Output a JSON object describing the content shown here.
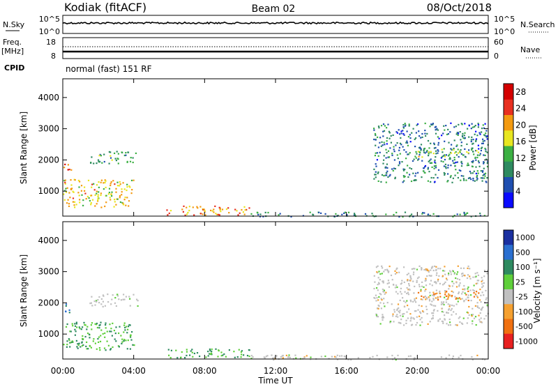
{
  "header": {
    "station": "Kodiak (fitACF)",
    "beam": "Beam 02",
    "date": "08/Oct/2018"
  },
  "top_panels": {
    "nsky": {
      "label": "N.Sky",
      "ticks": [
        "10^5",
        "10^0"
      ]
    },
    "nsearch": {
      "label": "N.Search",
      "ticks": [
        "10^5",
        "10^0"
      ]
    },
    "freq": {
      "label": "Freq.",
      "unit": "[MHz]",
      "ticks": [
        "18",
        "8"
      ]
    },
    "nave": {
      "label": "Nave",
      "ticks": [
        "60",
        "0"
      ]
    },
    "cpid": {
      "label": "CPID",
      "value": "normal (fast) 151 RF"
    }
  },
  "chart_data": [
    {
      "type": "heatmap",
      "name": "power-panel",
      "ylabel": "Slant Range [km]",
      "xlabel": "Time UT",
      "x_ticks": [
        "00:00",
        "04:00",
        "08:00",
        "12:00",
        "16:00",
        "20:00",
        "00:00"
      ],
      "xlim": [
        0,
        24
      ],
      "ylim": [
        200,
        4600
      ],
      "y_ticks": [
        1000,
        2000,
        3000,
        4000
      ],
      "colorbar": {
        "label": "Power [dB]",
        "ticks": [
          "4",
          "8",
          "12",
          "16",
          "20",
          "24",
          "28"
        ],
        "range": [
          0,
          30
        ],
        "colors": [
          "#0a0aff",
          "#1f4fb0",
          "#2e8a60",
          "#3cb043",
          "#e8e620",
          "#f39a10",
          "#e83020",
          "#d40000"
        ]
      },
      "features": [
        {
          "t_start": 0.0,
          "t_end": 4.0,
          "range_min": 500,
          "range_max": 1400,
          "level": 18
        },
        {
          "t_start": 0.0,
          "t_end": 0.5,
          "range_min": 1700,
          "range_max": 2000,
          "level": 24
        },
        {
          "t_start": 1.5,
          "t_end": 4.2,
          "range_min": 1900,
          "range_max": 2300,
          "level": 12
        },
        {
          "t_start": 5.8,
          "t_end": 10.5,
          "range_min": 250,
          "range_max": 550,
          "level": 20
        },
        {
          "t_start": 10.5,
          "t_end": 24.0,
          "range_min": 200,
          "range_max": 350,
          "level": 10
        },
        {
          "t_start": 17.5,
          "t_end": 24.0,
          "range_min": 1300,
          "range_max": 3200,
          "level": 8
        },
        {
          "t_start": 20.0,
          "t_end": 23.5,
          "range_min": 2100,
          "range_max": 2400,
          "level": 14
        }
      ]
    },
    {
      "type": "heatmap",
      "name": "velocity-panel",
      "ylabel": "Slant Range [km]",
      "xlabel": "Time UT",
      "x_ticks": [
        "00:00",
        "04:00",
        "08:00",
        "12:00",
        "16:00",
        "20:00",
        "00:00"
      ],
      "xlim": [
        0,
        24
      ],
      "ylim": [
        200,
        4600
      ],
      "y_ticks": [
        1000,
        2000,
        3000,
        4000
      ],
      "colorbar": {
        "label": "Velocity [m s⁻¹]",
        "ticks": [
          "1000",
          "500",
          "100",
          "25",
          "-25",
          "-100",
          "-500",
          "-1000"
        ],
        "colors": [
          "#1a2fa0",
          "#2a6fd0",
          "#2e8a60",
          "#5fcf3a",
          "#c0c0c0",
          "#f5a030",
          "#f07010",
          "#e82020"
        ]
      },
      "features": [
        {
          "t_start": 0.0,
          "t_end": 4.0,
          "range_min": 500,
          "range_max": 1400,
          "level": 100
        },
        {
          "t_start": 0.0,
          "t_end": 0.5,
          "range_min": 1700,
          "range_max": 2000,
          "level": 500
        },
        {
          "t_start": 1.5,
          "t_end": 4.2,
          "range_min": 1900,
          "range_max": 2300,
          "level": 0
        },
        {
          "t_start": 5.8,
          "t_end": 10.5,
          "range_min": 250,
          "range_max": 550,
          "level": 100
        },
        {
          "t_start": 10.5,
          "t_end": 24.0,
          "range_min": 200,
          "range_max": 350,
          "level": 0
        },
        {
          "t_start": 17.5,
          "t_end": 24.0,
          "range_min": 1300,
          "range_max": 3200,
          "level": 0
        },
        {
          "t_start": 20.0,
          "t_end": 23.5,
          "range_min": 2100,
          "range_max": 2400,
          "level": -100
        }
      ]
    }
  ]
}
